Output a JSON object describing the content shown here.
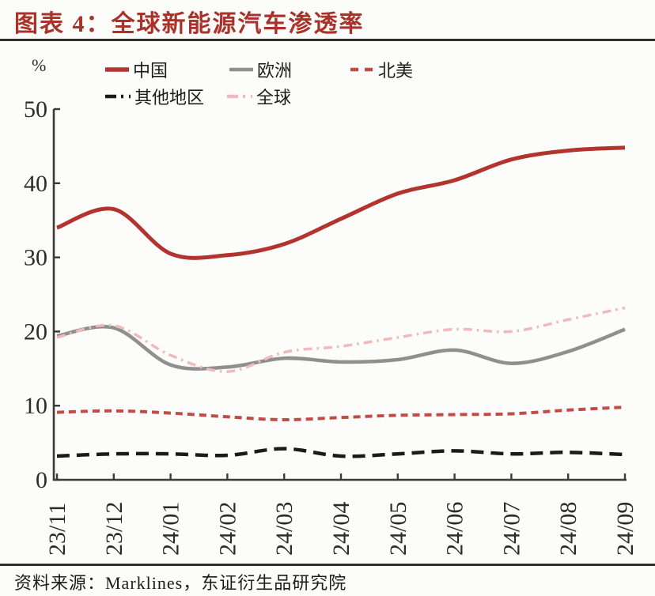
{
  "title": "图表 4：全球新能源汽车渗透率",
  "source": "资料来源：Marklines，东证衍生品研究院",
  "colors": {
    "title_red": "#a9322a",
    "axis": "#3a3a3a",
    "text": "#2b2b2b",
    "background": "#fcfcfa"
  },
  "chart_data": {
    "type": "line",
    "title": "全球新能源汽车渗透率",
    "unit_label": "%",
    "xlabel": "",
    "ylabel": "%",
    "ylim": [
      0,
      50
    ],
    "y_ticks": [
      0,
      10,
      20,
      30,
      40,
      50
    ],
    "grid": "off",
    "legend_position": "top",
    "categories": [
      "23/11",
      "23/12",
      "24/01",
      "24/02",
      "24/03",
      "24/04",
      "24/05",
      "24/06",
      "24/07",
      "24/08",
      "24/09"
    ],
    "series": [
      {
        "key": "china",
        "name": "中国",
        "color": "#b1342e",
        "style": "solid",
        "dash": "none",
        "width": 5,
        "values": [
          34.0,
          36.5,
          30.5,
          30.3,
          31.8,
          35.2,
          38.6,
          40.4,
          43.2,
          44.4,
          44.8
        ]
      },
      {
        "key": "europe",
        "name": "欧洲",
        "color": "#8f8f8f",
        "style": "solid",
        "dash": "none",
        "width": 4.5,
        "values": [
          19.4,
          20.5,
          15.5,
          15.2,
          16.4,
          15.9,
          16.2,
          17.5,
          15.7,
          17.3,
          20.3
        ]
      },
      {
        "key": "north-america",
        "name": "北美",
        "color": "#c34b45",
        "style": "dashed",
        "dash": "9 6",
        "width": 4,
        "values": [
          9.1,
          9.3,
          9.0,
          8.5,
          8.1,
          8.4,
          8.7,
          8.8,
          8.9,
          9.4,
          9.8
        ]
      },
      {
        "key": "other-regions",
        "name": "其他地区",
        "color": "#1b1b1b",
        "style": "dash-dot",
        "dash": "16 9",
        "width": 4.5,
        "values": [
          3.2,
          3.5,
          3.5,
          3.3,
          4.2,
          3.2,
          3.5,
          3.9,
          3.5,
          3.7,
          3.4
        ]
      },
      {
        "key": "global",
        "name": "全球",
        "color": "#f0b9bc",
        "style": "dash-dot",
        "dash": "11 6 2.5 6",
        "width": 3.5,
        "values": [
          19.2,
          20.8,
          16.8,
          14.6,
          17.2,
          18.0,
          19.2,
          20.3,
          20.0,
          21.6,
          23.2
        ]
      }
    ]
  }
}
